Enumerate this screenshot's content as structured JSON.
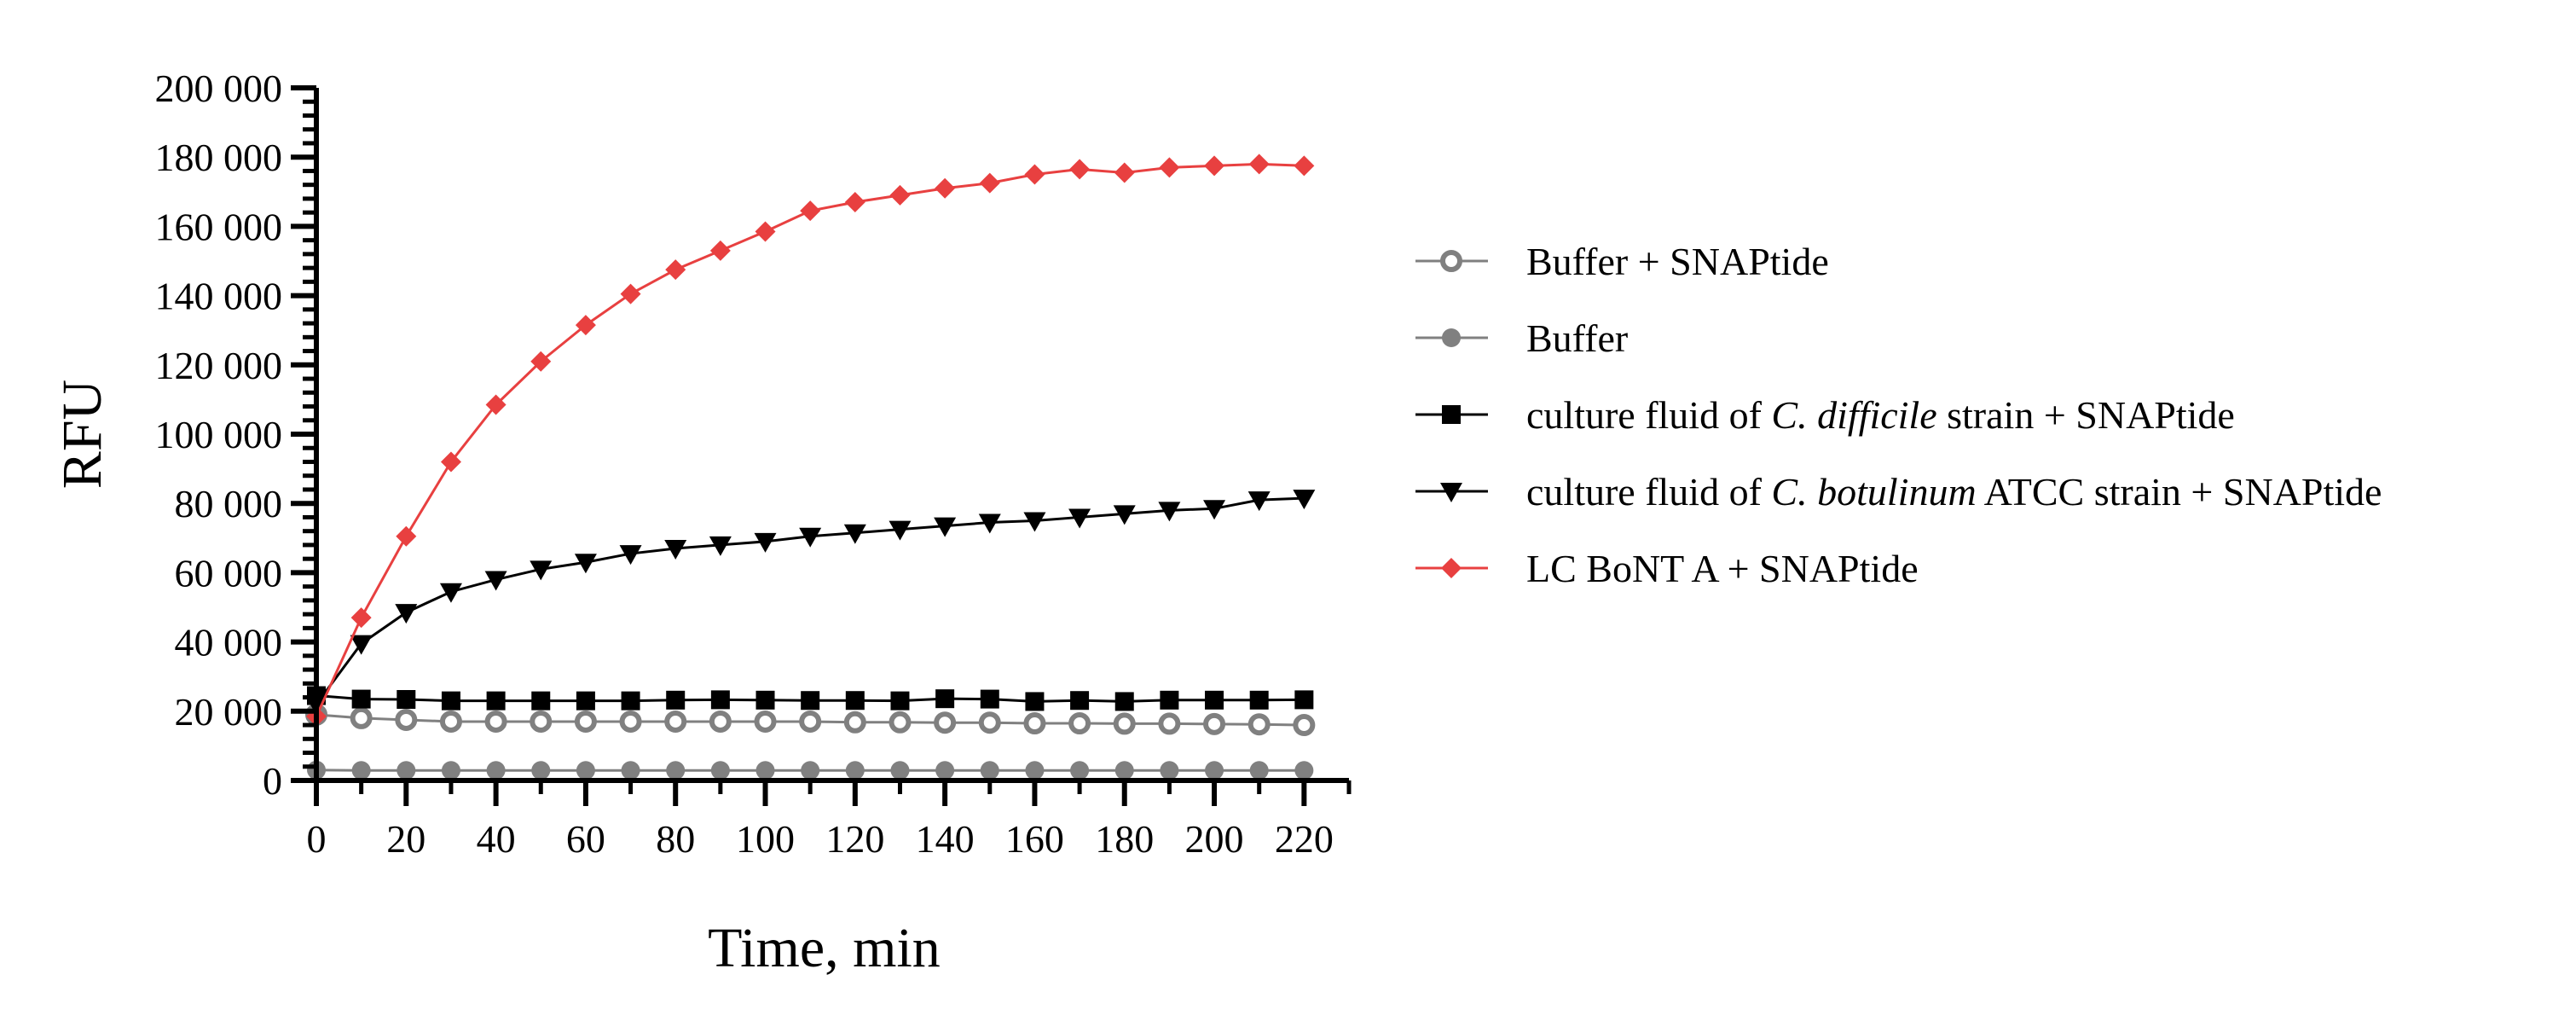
{
  "chart_data": {
    "type": "line",
    "title": "",
    "xlabel": "Time, min",
    "ylabel": "RFU",
    "xlim": [
      0,
      230
    ],
    "ylim": [
      0,
      200000
    ],
    "x_ticks": [
      "0",
      "20",
      "40",
      "60",
      "80",
      "100",
      "120",
      "140",
      "160",
      "180",
      "200",
      "220"
    ],
    "y_ticks": [
      "0",
      "20 000",
      "40 000",
      "60 000",
      "80 000",
      "100 000",
      "120 000",
      "140 000",
      "160 000",
      "180 000",
      "200 000"
    ],
    "grid": false,
    "legend_position": "right",
    "x": [
      0,
      10,
      20,
      30,
      40,
      50,
      60,
      70,
      80,
      90,
      100,
      110,
      120,
      130,
      140,
      150,
      160,
      170,
      180,
      190,
      200,
      210,
      220
    ],
    "series": [
      {
        "name": "Buffer + SNAPtide",
        "legend": [
          {
            "text": "Buffer + SNAPtide",
            "italic": false
          }
        ],
        "color": "#808080",
        "marker": "circle-open",
        "values": [
          19000,
          18000,
          17500,
          17000,
          17000,
          17000,
          17000,
          17000,
          17000,
          17000,
          17000,
          17000,
          16800,
          16800,
          16700,
          16700,
          16500,
          16500,
          16400,
          16400,
          16300,
          16200,
          16000
        ]
      },
      {
        "name": "Buffer",
        "legend": [
          {
            "text": "Buffer",
            "italic": false
          }
        ],
        "color": "#808080",
        "marker": "circle-filled",
        "values": [
          3000,
          2900,
          2900,
          2900,
          2900,
          2900,
          2900,
          2900,
          2900,
          2900,
          2900,
          2900,
          2900,
          2900,
          2900,
          2900,
          2900,
          2900,
          2900,
          2900,
          2900,
          2900,
          2900
        ]
      },
      {
        "name": "culture fluid of C. difficile strain + SNAPtide",
        "legend": [
          {
            "text": "culture fluid of ",
            "italic": false
          },
          {
            "text": "C. difficile",
            "italic": true
          },
          {
            "text": " strain + SNAPtide",
            "italic": false
          }
        ],
        "color": "#000000",
        "marker": "square",
        "values": [
          24500,
          23500,
          23400,
          23000,
          23000,
          23000,
          23000,
          23000,
          23200,
          23300,
          23200,
          23100,
          23100,
          23000,
          23600,
          23500,
          22800,
          23100,
          22800,
          23200,
          23200,
          23200,
          23300
        ]
      },
      {
        "name": "culture fluid of C. botulinum ATCC strain + SNAPtide",
        "legend": [
          {
            "text": "culture fluid of ",
            "italic": false
          },
          {
            "text": "C. botulinum",
            "italic": true
          },
          {
            "text": " ATCC strain + SNAPtide",
            "italic": false
          }
        ],
        "color": "#000000",
        "marker": "triangle-down",
        "values": [
          22000,
          39500,
          48500,
          54500,
          58000,
          61000,
          63000,
          65500,
          67000,
          68000,
          69000,
          70500,
          71500,
          72500,
          73500,
          74500,
          75000,
          76000,
          77000,
          78000,
          78500,
          81000,
          81500
        ]
      },
      {
        "name": "LC BoNT A + SNAPtide",
        "legend": [
          {
            "text": "LC BoNT A + SNAPtide",
            "italic": false
          }
        ],
        "color": "#e84040",
        "marker": "diamond",
        "values": [
          18500,
          47000,
          70500,
          92000,
          108500,
          121000,
          131500,
          140500,
          147500,
          153000,
          158500,
          164500,
          167000,
          169000,
          171000,
          172500,
          175000,
          176500,
          175500,
          177000,
          177500,
          178000,
          177500
        ]
      }
    ]
  }
}
